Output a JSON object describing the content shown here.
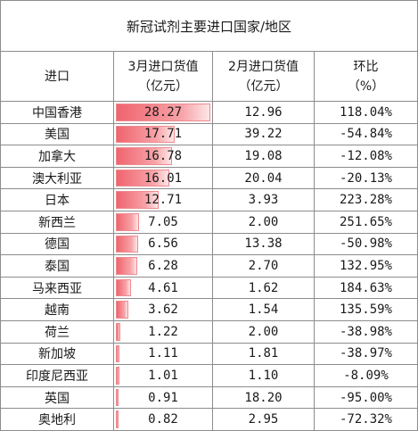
{
  "title": "新冠试剂主要进口国家/地区",
  "headers": {
    "region": "进口",
    "march_line1": "3月进口货值",
    "march_line2": "（亿元）",
    "feb_line1": "2月进口货值",
    "feb_line2": "（亿元）",
    "mom_line1": "环比",
    "mom_line2": "（%）"
  },
  "bar_max": 28.27,
  "colors": {
    "bar": "#f0646e",
    "border": "#8c8c8c"
  },
  "rows": [
    {
      "region": "中国香港",
      "march": "28.27",
      "feb": "12.96",
      "mom": "118.04%"
    },
    {
      "region": "美国",
      "march": "17.71",
      "feb": "39.22",
      "mom": "-54.84%"
    },
    {
      "region": "加拿大",
      "march": "16.78",
      "feb": "19.08",
      "mom": "-12.08%"
    },
    {
      "region": "澳大利亚",
      "march": "16.01",
      "feb": "20.04",
      "mom": "-20.13%"
    },
    {
      "region": "日本",
      "march": "12.71",
      "feb": "3.93",
      "mom": "223.28%"
    },
    {
      "region": "新西兰",
      "march": "7.05",
      "feb": "2.00",
      "mom": "251.65%"
    },
    {
      "region": "德国",
      "march": "6.56",
      "feb": "13.38",
      "mom": "-50.98%"
    },
    {
      "region": "泰国",
      "march": "6.28",
      "feb": "2.70",
      "mom": "132.95%"
    },
    {
      "region": "马来西亚",
      "march": "4.61",
      "feb": "1.62",
      "mom": "184.63%"
    },
    {
      "region": "越南",
      "march": "3.62",
      "feb": "1.54",
      "mom": "135.59%"
    },
    {
      "region": "荷兰",
      "march": "1.22",
      "feb": "2.00",
      "mom": "-38.98%"
    },
    {
      "region": "新加坡",
      "march": "1.11",
      "feb": "1.81",
      "mom": "-38.97%"
    },
    {
      "region": "印度尼西亚",
      "march": "1.01",
      "feb": "1.10",
      "mom": "-8.09%"
    },
    {
      "region": "英国",
      "march": "0.91",
      "feb": "18.20",
      "mom": "-95.00%"
    },
    {
      "region": "奥地利",
      "march": "0.82",
      "feb": "2.95",
      "mom": "-72.32%"
    }
  ]
}
